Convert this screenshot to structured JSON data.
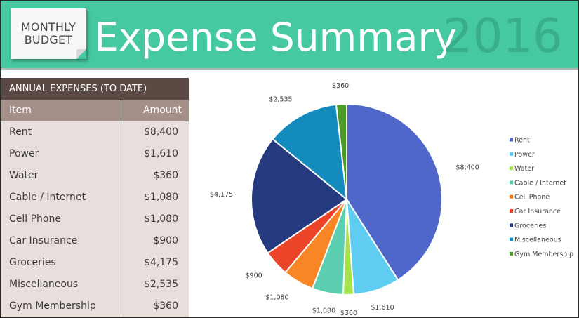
{
  "header": {
    "note_line1": "MONTHLY",
    "note_line2": "BUDGET",
    "title": "Expense Summary",
    "year": "2016"
  },
  "table": {
    "title": "ANNUAL EXPENSES (TO DATE)",
    "col_item": "Item",
    "col_amount": "Amount",
    "rows": [
      {
        "item": "Rent",
        "amount": "$8,400"
      },
      {
        "item": "Power",
        "amount": "$1,610"
      },
      {
        "item": "Water",
        "amount": "$360"
      },
      {
        "item": "Cable / Internet",
        "amount": "$1,080"
      },
      {
        "item": "Cell Phone",
        "amount": "$1,080"
      },
      {
        "item": "Car Insurance",
        "amount": "$900"
      },
      {
        "item": "Groceries",
        "amount": "$4,175"
      },
      {
        "item": "Miscellaneous",
        "amount": "$2,535"
      },
      {
        "item": "Gym Membership",
        "amount": "$360"
      }
    ]
  },
  "colors": {
    "banner": "#46c8a0",
    "year": "#38ae8a",
    "panel_head": "#5b4a44",
    "col_head": "#a49088",
    "panel_bg": "#e8dfdc"
  },
  "chart_data": {
    "type": "pie",
    "categories": [
      "Rent",
      "Power",
      "Water",
      "Cable / Internet",
      "Cell Phone",
      "Car Insurance",
      "Groceries",
      "Miscellaneous",
      "Gym Membership"
    ],
    "values": [
      8400,
      1610,
      360,
      1080,
      1080,
      900,
      4175,
      2535,
      360
    ],
    "labels": [
      "$8,400",
      "$1,610",
      "$360",
      "$1,080",
      "$1,080",
      "$900",
      "$4,175",
      "$2,535",
      "$360"
    ],
    "colors": [
      "#4f67c9",
      "#5fcdf2",
      "#a6e34a",
      "#5ccfb0",
      "#f98624",
      "#ec4429",
      "#263a7f",
      "#138cbd",
      "#4d9b27"
    ],
    "legend_position": "right"
  }
}
